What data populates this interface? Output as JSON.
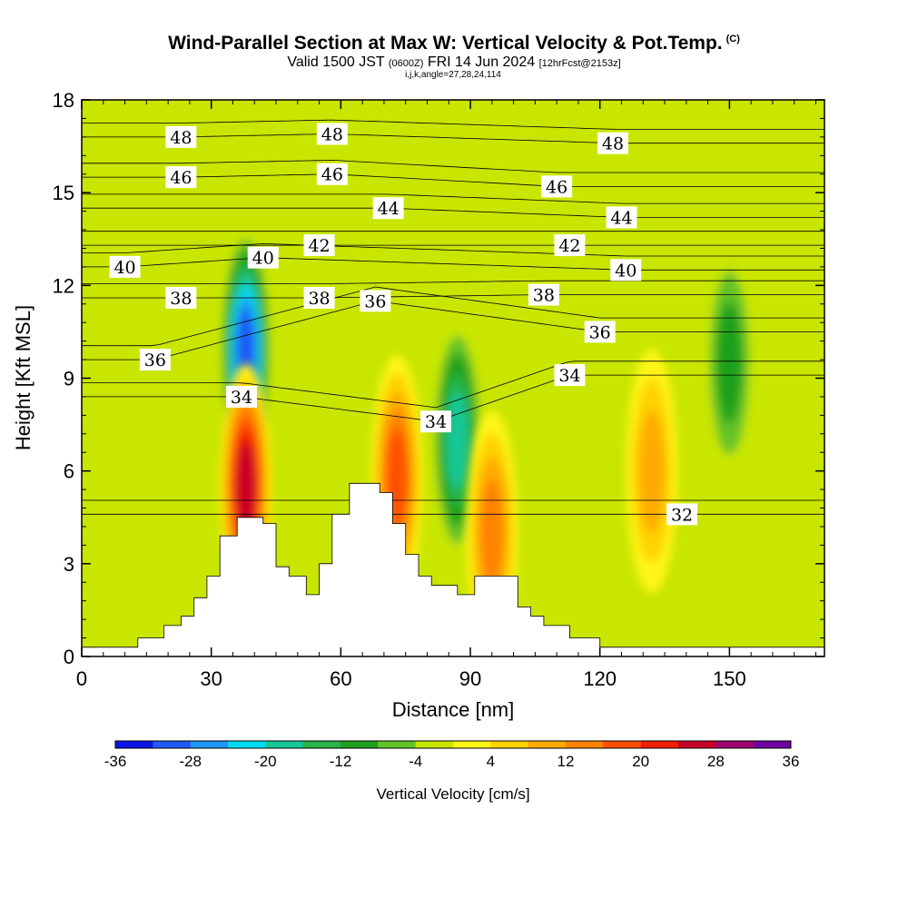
{
  "title": {
    "main": "Wind-Parallel Section at Max W: Vertical Velocity & Pot.Temp.",
    "copyright": "(C)",
    "valid_prefix": "Valid 1500 JST",
    "valid_utc": "(0600Z)",
    "valid_date": "FRI 14 Jun 2024",
    "forecast": "[12hrFcst@2153z]",
    "params": "i,j,k,angle=27,28,24,114"
  },
  "colorbar": {
    "title": "Vertical Velocity [cm/s]",
    "tick_labels": [
      "-36",
      "-28",
      "-20",
      "-12",
      "-4",
      "4",
      "12",
      "20",
      "28",
      "36"
    ],
    "colors": [
      "#0a14e6",
      "#1e5af5",
      "#1e96f5",
      "#00dcf0",
      "#14c896",
      "#28b446",
      "#1ea01e",
      "#64c328",
      "#c8e600",
      "#fff514",
      "#ffd200",
      "#ffaa00",
      "#ff8200",
      "#ff5000",
      "#f01e00",
      "#c80028",
      "#a0006e",
      "#6e00a0"
    ]
  },
  "chart_data": {
    "type": "heatmap",
    "title": "Wind-Parallel Section at Max W: Vertical Velocity & Pot.Temp.",
    "xlabel": "Distance [nm]",
    "ylabel": "Height [Kft MSL]",
    "xlim": [
      0,
      172
    ],
    "ylim": [
      0,
      18
    ],
    "x_ticks": [
      0,
      30,
      60,
      90,
      120,
      150
    ],
    "y_ticks": [
      0,
      3,
      6,
      9,
      12,
      15,
      18
    ],
    "x_tick_labels": [
      "0",
      "30",
      "60",
      "90",
      "120",
      "150"
    ],
    "y_tick_labels": [
      "0",
      "3",
      "6",
      "9",
      "12",
      "15",
      "18"
    ],
    "field": "Vertical Velocity [cm/s]",
    "contour_field": "Potential Temperature",
    "contour_levels": [
      32,
      34,
      36,
      38,
      40,
      42,
      44,
      46,
      48
    ],
    "terrain": [
      [
        0,
        0.3
      ],
      [
        13,
        0.3
      ],
      [
        13,
        0.6
      ],
      [
        19,
        0.6
      ],
      [
        19,
        1.0
      ],
      [
        23,
        1.0
      ],
      [
        23,
        1.3
      ],
      [
        26,
        1.3
      ],
      [
        26,
        1.9
      ],
      [
        29,
        1.9
      ],
      [
        29,
        2.6
      ],
      [
        32,
        2.6
      ],
      [
        32,
        3.9
      ],
      [
        36,
        3.9
      ],
      [
        36,
        4.5
      ],
      [
        42,
        4.5
      ],
      [
        42,
        4.3
      ],
      [
        45,
        4.3
      ],
      [
        45,
        2.9
      ],
      [
        48,
        2.9
      ],
      [
        48,
        2.6
      ],
      [
        52,
        2.6
      ],
      [
        52,
        2.0
      ],
      [
        55,
        2.0
      ],
      [
        55,
        3.0
      ],
      [
        58,
        3.0
      ],
      [
        58,
        4.6
      ],
      [
        62,
        4.6
      ],
      [
        62,
        5.6
      ],
      [
        69,
        5.6
      ],
      [
        69,
        5.3
      ],
      [
        72,
        5.3
      ],
      [
        72,
        4.3
      ],
      [
        75,
        4.3
      ],
      [
        75,
        3.3
      ],
      [
        78,
        3.3
      ],
      [
        78,
        2.6
      ],
      [
        81,
        2.6
      ],
      [
        81,
        2.3
      ],
      [
        87,
        2.3
      ],
      [
        87,
        2.0
      ],
      [
        91,
        2.0
      ],
      [
        91,
        2.6
      ],
      [
        101,
        2.6
      ],
      [
        101,
        1.6
      ],
      [
        104,
        1.6
      ],
      [
        104,
        1.3
      ],
      [
        107,
        1.3
      ],
      [
        107,
        1.0
      ],
      [
        113,
        1.0
      ],
      [
        113,
        0.6
      ],
      [
        120,
        0.6
      ],
      [
        120,
        0.3
      ],
      [
        172,
        0.3
      ]
    ],
    "contour_labels": [
      {
        "value": "48",
        "x": 23,
        "y": 16.8
      },
      {
        "value": "48",
        "x": 58,
        "y": 16.9
      },
      {
        "value": "48",
        "x": 123,
        "y": 16.6
      },
      {
        "value": "46",
        "x": 23,
        "y": 15.5
      },
      {
        "value": "46",
        "x": 58,
        "y": 15.6
      },
      {
        "value": "46",
        "x": 110,
        "y": 15.2
      },
      {
        "value": "44",
        "x": 71,
        "y": 14.5
      },
      {
        "value": "44",
        "x": 125,
        "y": 14.2
      },
      {
        "value": "42",
        "x": 55,
        "y": 13.3
      },
      {
        "value": "42",
        "x": 113,
        "y": 13.3
      },
      {
        "value": "40",
        "x": 10,
        "y": 12.6
      },
      {
        "value": "40",
        "x": 42,
        "y": 12.9
      },
      {
        "value": "40",
        "x": 126,
        "y": 12.5
      },
      {
        "value": "38",
        "x": 23,
        "y": 11.6
      },
      {
        "value": "38",
        "x": 55,
        "y": 11.6
      },
      {
        "value": "38",
        "x": 107,
        "y": 11.7
      },
      {
        "value": "36",
        "x": 17,
        "y": 9.6
      },
      {
        "value": "36",
        "x": 68,
        "y": 11.5
      },
      {
        "value": "36",
        "x": 120,
        "y": 10.5
      },
      {
        "value": "34",
        "x": 37,
        "y": 8.4
      },
      {
        "value": "34",
        "x": 82,
        "y": 7.6
      },
      {
        "value": "34",
        "x": 113,
        "y": 9.1
      },
      {
        "value": "32",
        "x": 139,
        "y": 4.6
      }
    ],
    "w_features": [
      {
        "x": 38,
        "y": 9.9,
        "value": -30,
        "label": "downdraft core"
      },
      {
        "x": 38,
        "y": 5.5,
        "value": 26,
        "label": "updraft core"
      },
      {
        "x": 73,
        "y": 5.8,
        "value": 20,
        "label": "updraft"
      },
      {
        "x": 87,
        "y": 7.0,
        "value": -20,
        "label": "downdraft"
      },
      {
        "x": 95,
        "y": 4.0,
        "value": 16,
        "label": "updraft"
      },
      {
        "x": 132,
        "y": 6.0,
        "value": 12,
        "label": "updraft"
      },
      {
        "x": 150,
        "y": 9.5,
        "value": -12,
        "label": "downdraft"
      }
    ]
  }
}
